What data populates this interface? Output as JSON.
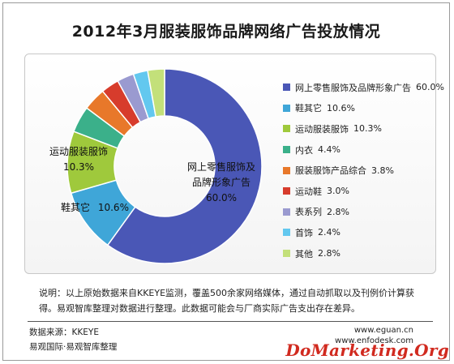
{
  "title": "2012年3月服装服饰品牌网络广告投放情况",
  "chart_data": {
    "type": "pie",
    "title": "2012年3月服装服饰品牌网络广告投放情况",
    "categories": [
      "网上零售服饰及品牌形象广告",
      "鞋其它",
      "运动服装服饰",
      "内衣",
      "服装服饰产品综合",
      "运动鞋",
      "表系列",
      "首饰",
      "其他"
    ],
    "values": [
      60.0,
      10.6,
      10.3,
      4.4,
      3.8,
      3.0,
      2.8,
      2.4,
      2.8
    ],
    "value_labels": [
      "60.0%",
      "10.6%",
      "10.3%",
      "4.4%",
      "3.8%",
      "3.0%",
      "2.8%",
      "2.4%",
      "2.8%"
    ],
    "colors": [
      "#4a57b6",
      "#3fa6d8",
      "#9fc93c",
      "#3bb08a",
      "#e8782a",
      "#d73c2c",
      "#9a9ad0",
      "#63c8ef",
      "#c3e07a"
    ],
    "legend_position": "right",
    "data_labels": {
      "first_line1": "网上零售服饰及",
      "first_line2": "品牌形象广告",
      "first_value": "60.0%",
      "second": "鞋其它",
      "second_value": "10.6%",
      "third": "运动服装服饰",
      "third_value": "10.3%"
    }
  },
  "note": "说明：以上原始数据来自KKEYE监测，覆盖500余家网络媒体，通过自动抓取以及刊例价计算获得。易观智库整理对数据进行整理。此数据可能会与厂商实际广告支出存在差异。",
  "footer": {
    "source": "数据来源：KKEYE",
    "org": "易观国际·易观智库整理",
    "site1": "www.eguan.cn",
    "site2": "www.enfodesk.com"
  },
  "watermark": "DoMarketing.Org"
}
